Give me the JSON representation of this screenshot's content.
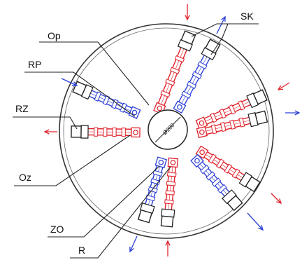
{
  "labels": {
    "op": "Op",
    "rp": "RP",
    "rz": "RZ",
    "oz": "Oz",
    "zo": "ZO",
    "r": "R",
    "sk": "SK"
  },
  "center_label": "Ø200",
  "colors": {
    "red": "#e0202a",
    "blue": "#2a3fd6",
    "line": "#222222",
    "housing": "#ffffff"
  }
}
